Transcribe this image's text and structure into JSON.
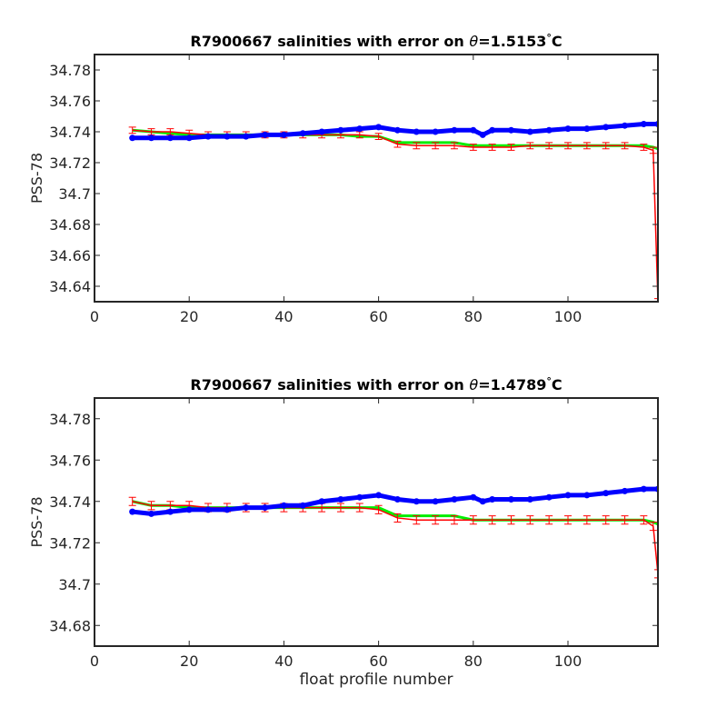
{
  "chart_data": [
    {
      "type": "line",
      "title_prefix": "R7900667 salinities with error on ",
      "title_symbol": "θ",
      "title_value": "=1.5153",
      "title_degree": "°",
      "title_unit": "C",
      "ylabel": "PSS-78",
      "xlabel": "",
      "xlim": [
        0,
        119
      ],
      "ylim": [
        34.63,
        34.79
      ],
      "xticks": [
        "0",
        "20",
        "40",
        "60",
        "80",
        "100"
      ],
      "xtick_values": [
        0,
        20,
        40,
        60,
        80,
        100
      ],
      "yticks": [
        "34.64",
        "34.66",
        "34.68",
        "34.7",
        "34.72",
        "34.74",
        "34.76",
        "34.78"
      ],
      "ytick_values": [
        34.64,
        34.66,
        34.68,
        34.7,
        34.72,
        34.74,
        34.76,
        34.78
      ],
      "grid": false,
      "series": [
        {
          "role": "float-salinity",
          "color": "#0000ff",
          "x": [
            8,
            12,
            16,
            20,
            24,
            28,
            32,
            36,
            40,
            44,
            48,
            52,
            56,
            60,
            64,
            68,
            72,
            76,
            80,
            82,
            84,
            88,
            92,
            96,
            100,
            104,
            108,
            112,
            116,
            119
          ],
          "y": [
            34.736,
            34.736,
            34.736,
            34.736,
            34.737,
            34.737,
            34.737,
            34.738,
            34.738,
            34.739,
            34.74,
            34.741,
            34.742,
            34.743,
            34.741,
            34.74,
            34.74,
            34.741,
            34.741,
            34.738,
            34.741,
            34.741,
            34.74,
            34.741,
            34.742,
            34.742,
            34.743,
            34.744,
            34.745,
            34.745
          ]
        },
        {
          "role": "calibrated-salinity",
          "color": "#00ee00",
          "x": [
            8,
            12,
            16,
            20,
            24,
            28,
            32,
            36,
            40,
            44,
            48,
            52,
            56,
            60,
            64,
            68,
            72,
            76,
            80,
            84,
            88,
            92,
            96,
            100,
            104,
            108,
            112,
            116,
            118,
            119
          ],
          "y": [
            34.741,
            34.74,
            34.739,
            34.738,
            34.738,
            34.738,
            34.738,
            34.738,
            34.738,
            34.738,
            34.738,
            34.738,
            34.737,
            34.737,
            34.733,
            34.733,
            34.733,
            34.733,
            34.731,
            34.731,
            34.731,
            34.731,
            34.731,
            34.731,
            34.731,
            34.731,
            34.731,
            34.731,
            34.73,
            34.729
          ]
        },
        {
          "role": "calibrated-with-error",
          "color": "#ff0000",
          "x": [
            8,
            12,
            16,
            20,
            24,
            28,
            32,
            36,
            40,
            44,
            48,
            52,
            56,
            60,
            64,
            68,
            72,
            76,
            80,
            84,
            88,
            92,
            96,
            100,
            104,
            108,
            112,
            116,
            118,
            119
          ],
          "y": [
            34.741,
            34.74,
            34.74,
            34.739,
            34.738,
            34.738,
            34.738,
            34.738,
            34.738,
            34.738,
            34.738,
            34.738,
            34.738,
            34.737,
            34.732,
            34.731,
            34.731,
            34.731,
            34.73,
            34.73,
            34.73,
            34.731,
            34.731,
            34.731,
            34.731,
            34.731,
            34.731,
            34.73,
            34.728,
            34.63
          ],
          "err": [
            0.002,
            0.002,
            0.002,
            0.002,
            0.002,
            0.002,
            0.002,
            0.002,
            0.002,
            0.002,
            0.002,
            0.002,
            0.002,
            0.002,
            0.002,
            0.002,
            0.002,
            0.002,
            0.002,
            0.002,
            0.002,
            0.002,
            0.002,
            0.002,
            0.002,
            0.002,
            0.002,
            0.002,
            0.002,
            0.002
          ]
        }
      ]
    },
    {
      "type": "line",
      "title_prefix": "R7900667 salinities with error on ",
      "title_symbol": "θ",
      "title_value": "=1.4789",
      "title_degree": "°",
      "title_unit": "C",
      "ylabel": "PSS-78",
      "xlabel": "float profile number",
      "xlim": [
        0,
        119
      ],
      "ylim": [
        34.67,
        34.79
      ],
      "xticks": [
        "0",
        "20",
        "40",
        "60",
        "80",
        "100"
      ],
      "xtick_values": [
        0,
        20,
        40,
        60,
        80,
        100
      ],
      "yticks": [
        "34.68",
        "34.7",
        "34.72",
        "34.74",
        "34.76",
        "34.78"
      ],
      "ytick_values": [
        34.68,
        34.7,
        34.72,
        34.74,
        34.76,
        34.78
      ],
      "grid": false,
      "series": [
        {
          "role": "float-salinity",
          "color": "#0000ff",
          "x": [
            8,
            12,
            16,
            20,
            24,
            28,
            32,
            36,
            40,
            44,
            48,
            52,
            56,
            60,
            64,
            68,
            72,
            76,
            80,
            82,
            84,
            88,
            92,
            96,
            100,
            104,
            108,
            112,
            116,
            119
          ],
          "y": [
            34.735,
            34.734,
            34.735,
            34.736,
            34.736,
            34.736,
            34.737,
            34.737,
            34.738,
            34.738,
            34.74,
            34.741,
            34.742,
            34.743,
            34.741,
            34.74,
            34.74,
            34.741,
            34.742,
            34.74,
            34.741,
            34.741,
            34.741,
            34.742,
            34.743,
            34.743,
            34.744,
            34.745,
            34.746,
            34.746
          ]
        },
        {
          "role": "calibrated-salinity",
          "color": "#00ee00",
          "x": [
            8,
            12,
            16,
            20,
            24,
            28,
            32,
            36,
            40,
            44,
            48,
            52,
            56,
            60,
            64,
            68,
            72,
            76,
            80,
            84,
            88,
            92,
            96,
            100,
            104,
            108,
            112,
            116,
            118,
            119
          ],
          "y": [
            34.74,
            34.738,
            34.738,
            34.737,
            34.737,
            34.737,
            34.737,
            34.737,
            34.737,
            34.737,
            34.737,
            34.737,
            34.737,
            34.737,
            34.733,
            34.733,
            34.733,
            34.733,
            34.731,
            34.731,
            34.731,
            34.731,
            34.731,
            34.731,
            34.731,
            34.731,
            34.731,
            34.731,
            34.73,
            34.729
          ]
        },
        {
          "role": "calibrated-with-error",
          "color": "#ff0000",
          "x": [
            8,
            12,
            16,
            20,
            24,
            28,
            32,
            36,
            40,
            44,
            48,
            52,
            56,
            60,
            64,
            68,
            72,
            76,
            80,
            84,
            88,
            92,
            96,
            100,
            104,
            108,
            112,
            116,
            118,
            119
          ],
          "y": [
            34.74,
            34.738,
            34.738,
            34.738,
            34.737,
            34.737,
            34.737,
            34.737,
            34.737,
            34.737,
            34.737,
            34.737,
            34.737,
            34.736,
            34.732,
            34.731,
            34.731,
            34.731,
            34.731,
            34.731,
            34.731,
            34.731,
            34.731,
            34.731,
            34.731,
            34.731,
            34.731,
            34.731,
            34.728,
            34.705
          ],
          "err": [
            0.002,
            0.002,
            0.002,
            0.002,
            0.002,
            0.002,
            0.002,
            0.002,
            0.002,
            0.002,
            0.002,
            0.002,
            0.002,
            0.002,
            0.002,
            0.002,
            0.002,
            0.002,
            0.002,
            0.002,
            0.002,
            0.002,
            0.002,
            0.002,
            0.002,
            0.002,
            0.002,
            0.002,
            0.002,
            0.002
          ]
        }
      ]
    }
  ]
}
